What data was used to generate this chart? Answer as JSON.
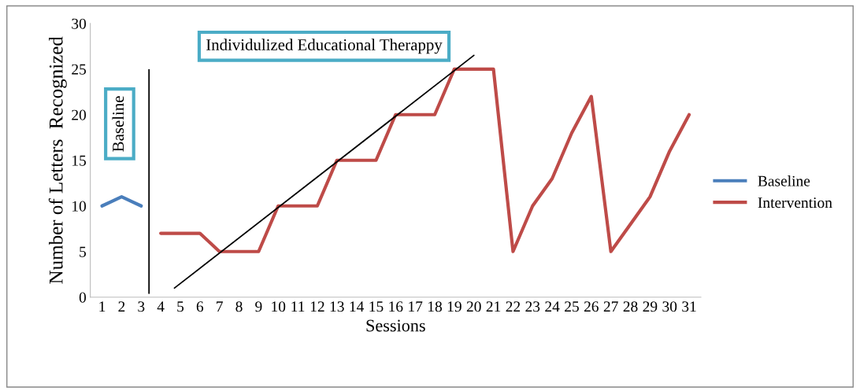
{
  "chart_data": {
    "type": "line",
    "xlabel": "Sessions",
    "ylabel": "Number of Letters  Recognized",
    "x": [
      1,
      2,
      3,
      4,
      5,
      6,
      7,
      8,
      9,
      10,
      11,
      12,
      13,
      14,
      15,
      16,
      17,
      18,
      19,
      20,
      21,
      22,
      23,
      24,
      25,
      26,
      27,
      28,
      29,
      30,
      31
    ],
    "xlim": [
      0.4,
      31.6
    ],
    "xticks": [
      1,
      2,
      3,
      4,
      5,
      6,
      7,
      8,
      9,
      10,
      11,
      12,
      13,
      14,
      15,
      16,
      17,
      18,
      19,
      20,
      21,
      22,
      23,
      24,
      25,
      26,
      27,
      28,
      29,
      30,
      31
    ],
    "ylim": [
      0,
      30
    ],
    "yticks": [
      0,
      5,
      10,
      15,
      20,
      25,
      30
    ],
    "series": [
      {
        "name": "Baseline",
        "color": "#4a7ebb",
        "values": [
          10,
          11,
          10,
          null,
          null,
          null,
          null,
          null,
          null,
          null,
          null,
          null,
          null,
          null,
          null,
          null,
          null,
          null,
          null,
          null,
          null,
          null,
          null,
          null,
          null,
          null,
          null,
          null,
          null,
          null,
          null
        ]
      },
      {
        "name": "Intervention",
        "color": "#be4b48",
        "values": [
          null,
          null,
          null,
          7,
          7,
          7,
          5,
          5,
          5,
          10,
          10,
          10,
          15,
          15,
          15,
          20,
          20,
          20,
          25,
          25,
          25,
          5,
          10,
          13,
          18,
          22,
          5,
          8,
          11,
          16,
          20
        ]
      },
      {
        "type": "line",
        "color": "#000000",
        "x": [
          4.7,
          20.0
        ],
        "values": [
          1,
          26.5
        ]
      }
    ],
    "ref_lines": [
      {
        "axis": "x",
        "value": 3.4,
        "color": "#000000"
      }
    ],
    "annotations": [
      "Baseline",
      "Individulized Educational Therappy"
    ],
    "legend": "right",
    "grid": false,
    "marker": "none",
    "line_style": "solid"
  }
}
